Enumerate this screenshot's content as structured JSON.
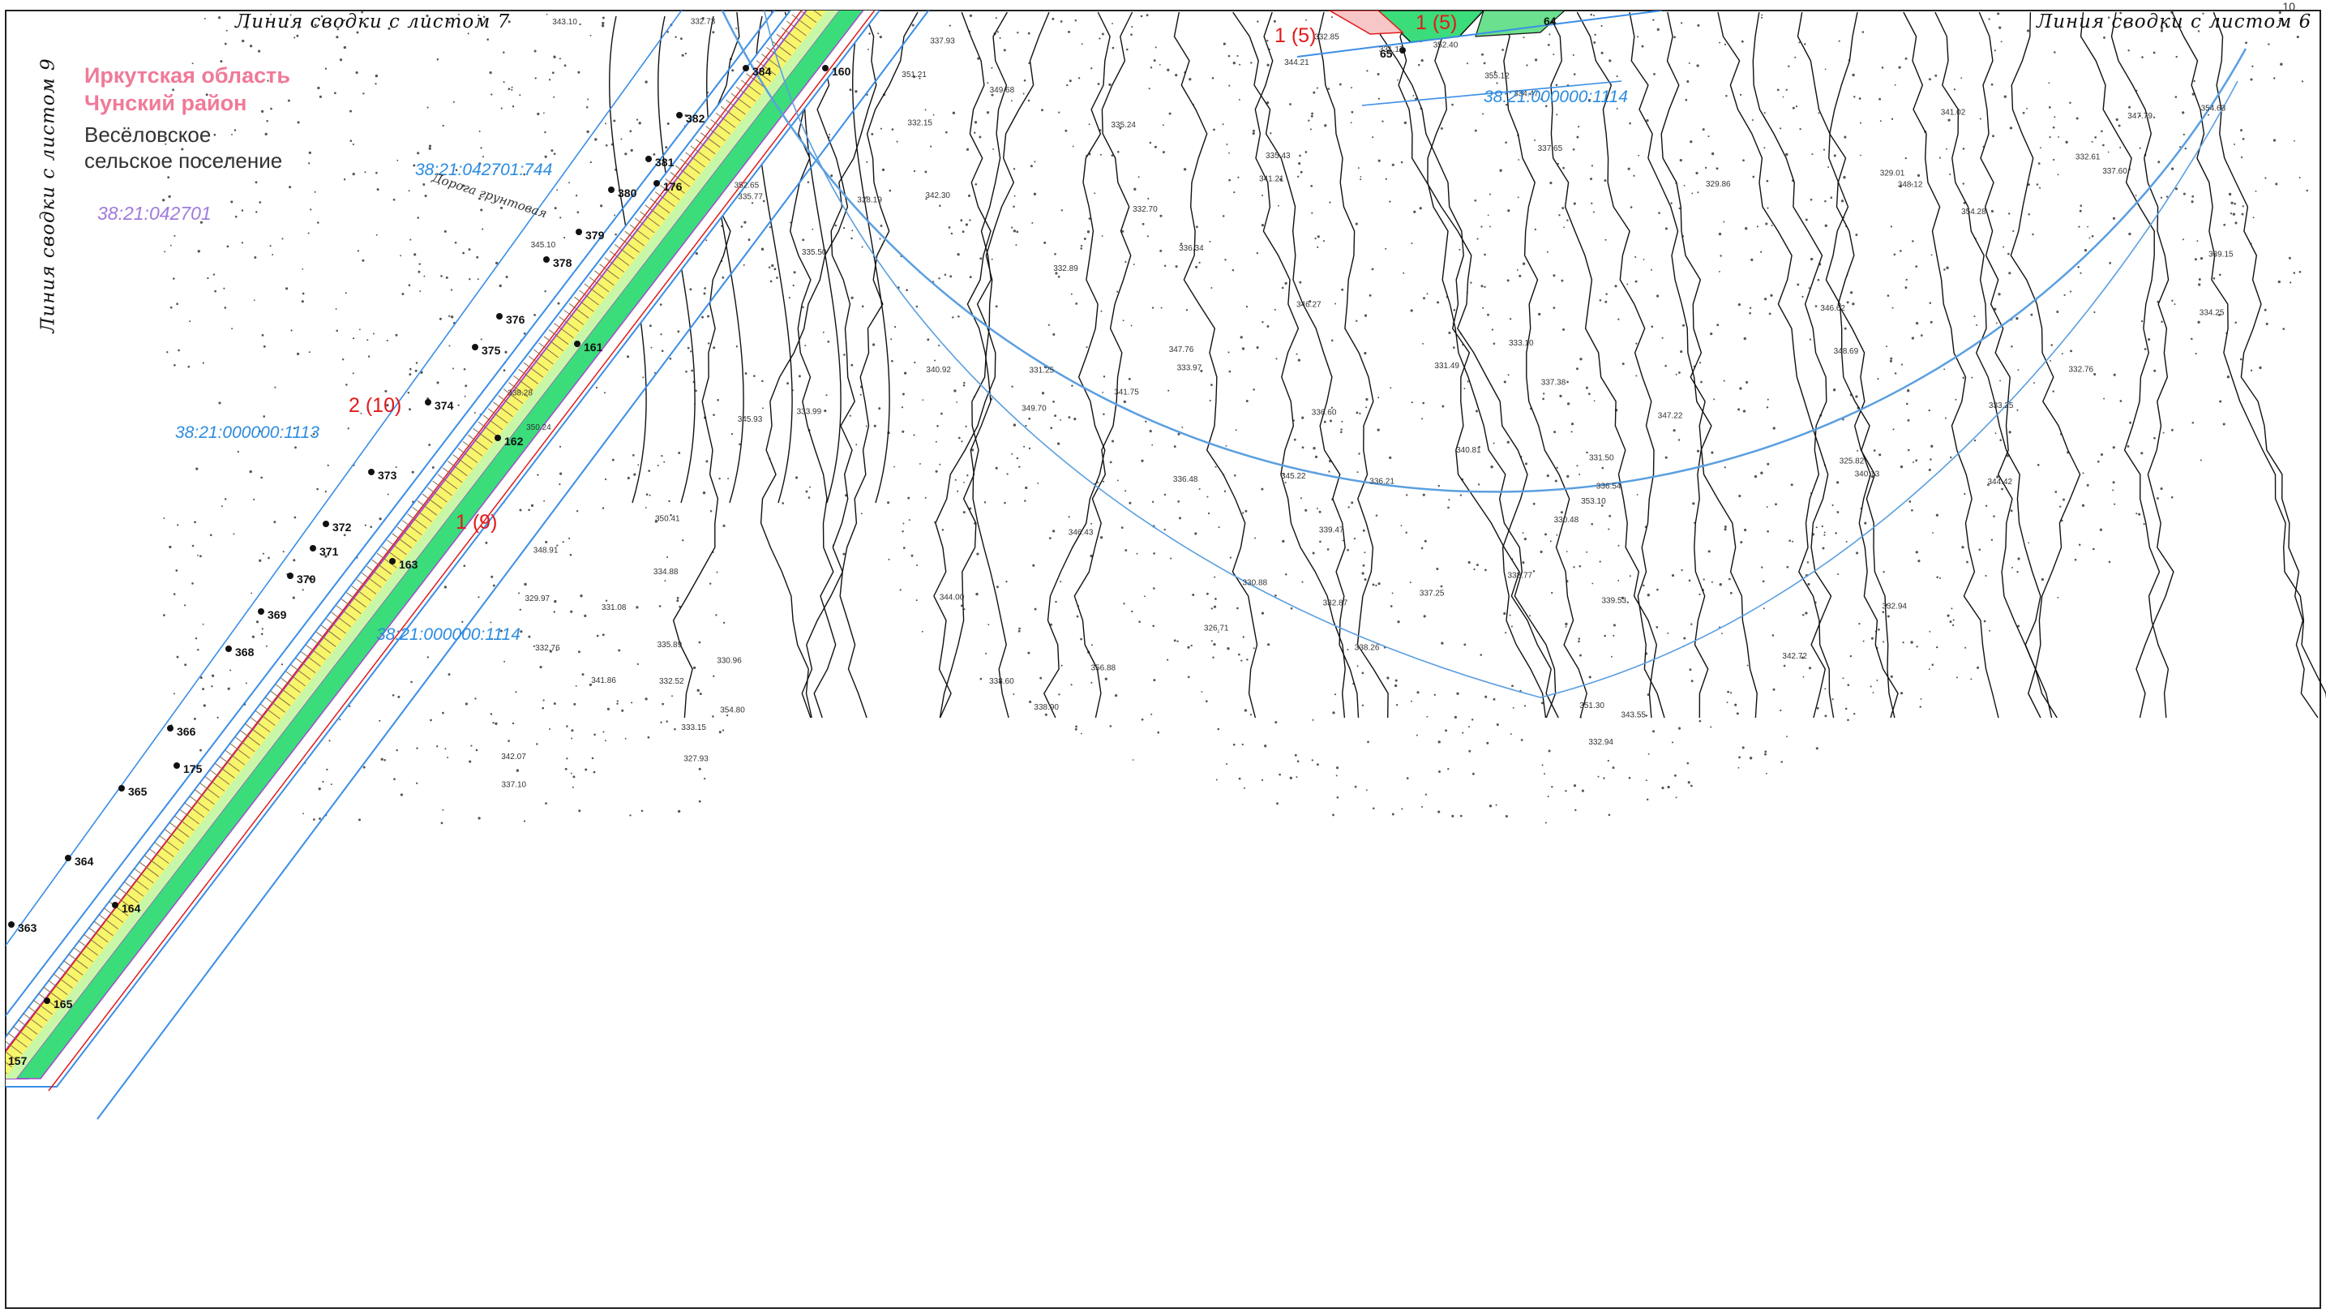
{
  "sheet": {
    "page_number": "10",
    "frame_labels": {
      "top_left": "Линия сводки с листом 7",
      "top_right": "Линия сводки с листом 6",
      "left_side": "Линия сводки с листом 9"
    }
  },
  "legend": {
    "region": "Иркутская область",
    "district": "Чунский район",
    "settlement_line1": "Весёловское",
    "settlement_line2": "сельское поселение",
    "cadastral_block": "38:21:042701"
  },
  "cadastral_labels": {
    "parcel_744": "38:21:042701:744",
    "parcel_1113": "38:21:000000:1113",
    "parcel_1114_a": "38:21:000000:1114",
    "parcel_1114_b": "38:21:000000:1114"
  },
  "zone_labels": {
    "z1": "2 (10)",
    "z2": "1 (9)",
    "z3": "1 (5)",
    "z4": "1 (5)"
  },
  "road_label": "Дорога грунтовая",
  "survey_points": {
    "p1": "160",
    "p2": "161",
    "p3": "162",
    "p4": "163",
    "p5": "164",
    "p6": "165",
    "p7": "175",
    "p8": "176",
    "p9": "384",
    "p10": "382",
    "p11": "381",
    "p12": "380",
    "p13": "379",
    "p14": "378",
    "p15": "376",
    "p16": "375",
    "p17": "374",
    "p18": "373",
    "p19": "372",
    "p20": "371",
    "p21": "370",
    "p22": "369",
    "p23": "368",
    "p24": "366",
    "p25": "365",
    "p26": "364",
    "p27": "363",
    "p28": "157",
    "p29": "64",
    "p30": "65"
  },
  "elevations": {
    "e1": "332.15",
    "e2": "332.76",
    "e3": "333.97",
    "e4": "334.88",
    "e5": "335.77",
    "e6": "337.38",
    "e7": "338.60",
    "e8": "346.43",
    "e9": "347.79",
    "e10": "348.12",
    "e11": "349.68",
    "e12": "352.65",
    "e13": "354.63",
    "e14": "356.88",
    "e15": "355.12",
    "e16": "354.80",
    "e17": "354.28",
    "e18": "352.40",
    "e19": "351.30",
    "e20": "350.41",
    "e21": "347.76",
    "e22": "348.69",
    "e23": "346.27",
    "e24": "345.22",
    "e25": "344.00",
    "e26": "341.86",
    "e27": "341.75",
    "e28": "341.02",
    "e29": "340.81",
    "e30": "339.47",
    "e31": "338.26",
    "e32": "337.93",
    "e33": "338.77",
    "e34": "337.65",
    "e35": "336.21",
    "e36": "337.10",
    "e37": "336.60",
    "e38": "336.54",
    "e39": "335.89",
    "e40": "335.43",
    "e41": "334.25",
    "e42": "333.99",
    "e43": "333.25",
    "e44": "333.10",
    "e45": "332.76",
    "e46": "331.50",
    "e47": "331.25",
    "e48": "330.48",
    "e49": "329.86",
    "e50": "329.97",
    "e51": "330.96",
    "e52": "331.08",
    "e53": "331.17",
    "e54": "331.49",
    "e55": "332.52",
    "e56": "333.15",
    "e57": "332.89",
    "e58": "332.85",
    "e59": "332.61",
    "e60": "332.70",
    "e61": "332.87",
    "e62": "332.94",
    "e63": "332.94",
    "e64": "332.73",
    "e65": "330.88",
    "e66": "329.01",
    "e67": "328.19",
    "e68": "327.93",
    "e69": "325.82",
    "e70": "326.71",
    "e71": "342.07",
    "e72": "342.72",
    "e73": "343.10",
    "e74": "344.21",
    "e75": "345.10",
    "e76": "341.21",
    "e77": "340.13",
    "e78": "339.15",
    "e79": "338.90",
    "e80": "337.60",
    "e81": "336.34",
    "e82": "335.50",
    "e83": "334.47",
    "e84": "335.24",
    "e85": "336.48",
    "e86": "337.25",
    "e87": "338.28",
    "e88": "339.53",
    "e89": "340.92",
    "e90": "342.30",
    "e91": "343.55",
    "e92": "344.42",
    "e93": "345.93",
    "e94": "346.62",
    "e95": "347.22",
    "e96": "348.91",
    "e97": "349.70",
    "e98": "350.24",
    "e99": "351.21",
    "e100": "353.10"
  },
  "colors": {
    "contour": "#111111",
    "boundary_blue": "#3a8ee6",
    "zone_yellow": "#f7f56a",
    "zone_green": "#3bdc7a",
    "zone_violet": "#a14bd0",
    "zone_red": "#e21a1a",
    "road_brown": "#8a6a4a"
  }
}
